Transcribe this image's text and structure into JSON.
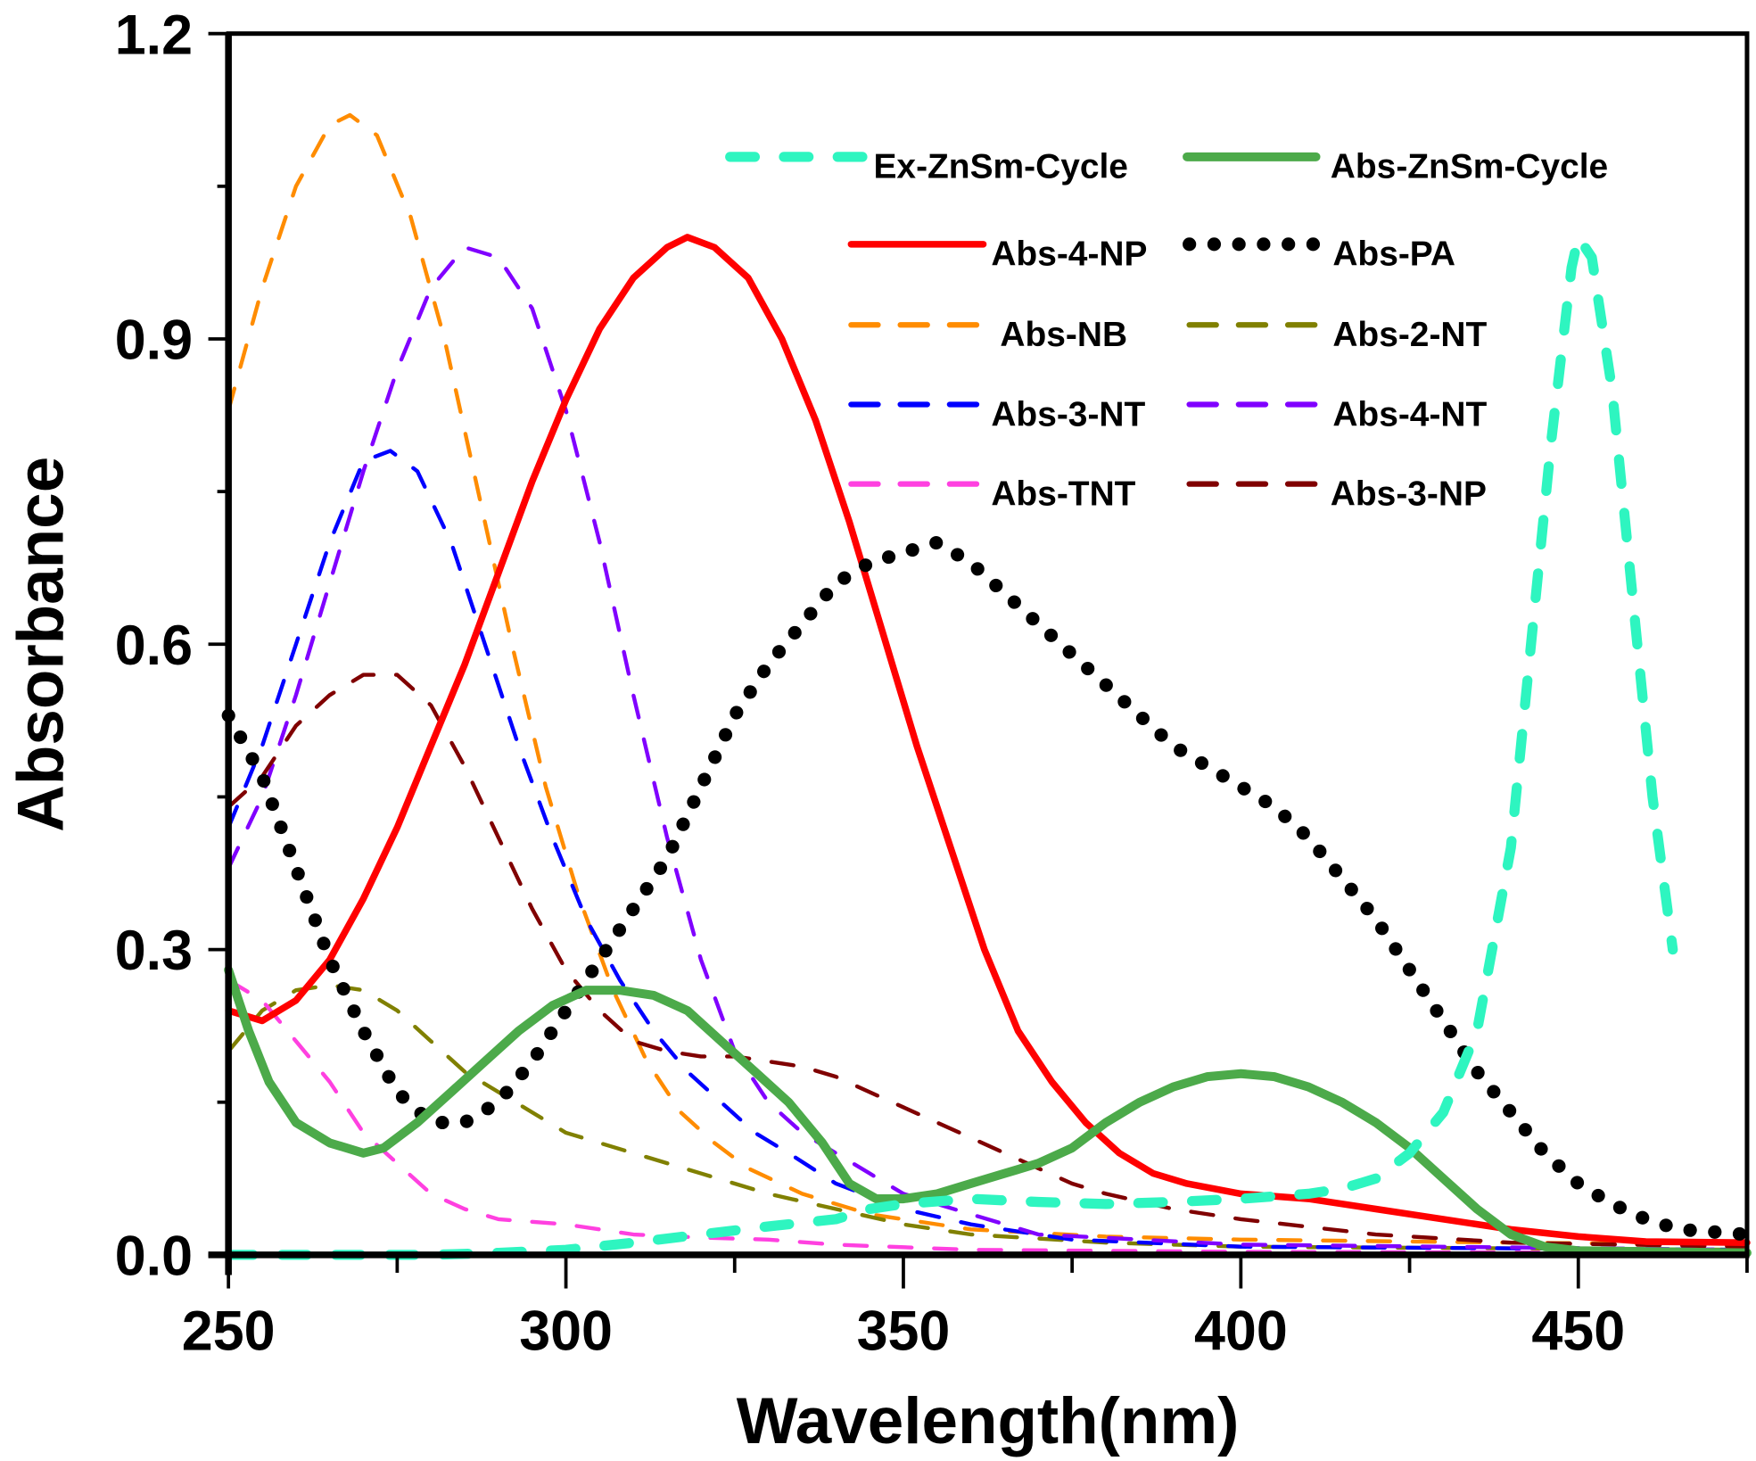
{
  "chart_data": {
    "type": "line",
    "xlabel": "Wavelength(nm)",
    "ylabel": "Absorbance",
    "xlim": [
      250,
      475
    ],
    "ylim": [
      0,
      1.2
    ],
    "xticks": [
      250,
      300,
      350,
      400,
      450
    ],
    "xtick_labels": [
      "250",
      "300",
      "350",
      "400",
      "450"
    ],
    "yticks": [
      0,
      0.3,
      0.6,
      0.9,
      1.2
    ],
    "ytick_labels": [
      "0.0",
      "0.3",
      "0.6",
      "0.9",
      "1.2"
    ],
    "grid": false,
    "legend_position": "top-right",
    "series": [
      {
        "name": "Ex-ZnSm-Cycle",
        "color": "#2ef5c0",
        "style": "dash-thick",
        "x": [
          250,
          280,
          290,
          300,
          310,
          320,
          330,
          340,
          345,
          350,
          360,
          370,
          380,
          390,
          400,
          410,
          415,
          420,
          425,
          430,
          435,
          440,
          443,
          446,
          449,
          450,
          452,
          455,
          458,
          461,
          464
        ],
        "y": [
          0,
          0,
          0.002,
          0.005,
          0.012,
          0.02,
          0.028,
          0.035,
          0.045,
          0.05,
          0.055,
          0.052,
          0.05,
          0.052,
          0.055,
          0.06,
          0.065,
          0.075,
          0.1,
          0.14,
          0.22,
          0.4,
          0.6,
          0.8,
          0.97,
          1.0,
          0.98,
          0.85,
          0.65,
          0.45,
          0.3
        ]
      },
      {
        "name": "Abs-ZnSm-Cycle",
        "color": "#4caa4a",
        "style": "solid-thick",
        "x": [
          250,
          253,
          256,
          260,
          265,
          270,
          273,
          278,
          283,
          288,
          293,
          298,
          303,
          308,
          313,
          318,
          323,
          328,
          333,
          338,
          342,
          346,
          350,
          355,
          360,
          365,
          370,
          375,
          380,
          385,
          390,
          395,
          400,
          405,
          410,
          415,
          420,
          425,
          430,
          435,
          440,
          445,
          450,
          475
        ],
        "y": [
          0.28,
          0.22,
          0.17,
          0.13,
          0.11,
          0.1,
          0.105,
          0.13,
          0.16,
          0.19,
          0.22,
          0.245,
          0.26,
          0.26,
          0.255,
          0.24,
          0.21,
          0.18,
          0.15,
          0.11,
          0.07,
          0.055,
          0.055,
          0.06,
          0.07,
          0.08,
          0.09,
          0.105,
          0.13,
          0.15,
          0.165,
          0.175,
          0.178,
          0.175,
          0.165,
          0.15,
          0.13,
          0.105,
          0.075,
          0.045,
          0.02,
          0.008,
          0.004,
          0.002
        ]
      },
      {
        "name": "Abs-4-NP",
        "color": "#ff0000",
        "style": "solid",
        "x": [
          250,
          255,
          260,
          265,
          270,
          275,
          280,
          285,
          290,
          295,
          300,
          305,
          310,
          315,
          318,
          322,
          327,
          332,
          337,
          342,
          347,
          352,
          357,
          362,
          367,
          372,
          377,
          382,
          387,
          392,
          400,
          410,
          420,
          430,
          440,
          450,
          460,
          475
        ],
        "y": [
          0.24,
          0.23,
          0.25,
          0.29,
          0.35,
          0.42,
          0.5,
          0.58,
          0.67,
          0.76,
          0.84,
          0.91,
          0.96,
          0.99,
          1.0,
          0.99,
          0.96,
          0.9,
          0.82,
          0.72,
          0.61,
          0.5,
          0.4,
          0.3,
          0.22,
          0.17,
          0.13,
          0.1,
          0.08,
          0.07,
          0.06,
          0.055,
          0.045,
          0.035,
          0.025,
          0.018,
          0.013,
          0.012
        ]
      },
      {
        "name": "Abs-PA",
        "color": "#000000",
        "style": "dot",
        "x": [
          250,
          255,
          260,
          265,
          270,
          275,
          280,
          285,
          290,
          295,
          300,
          305,
          310,
          315,
          320,
          325,
          330,
          335,
          340,
          345,
          350,
          355,
          360,
          365,
          370,
          375,
          380,
          385,
          390,
          395,
          400,
          405,
          410,
          415,
          420,
          425,
          430,
          435,
          440,
          445,
          450,
          455,
          460,
          465,
          475
        ],
        "y": [
          0.53,
          0.47,
          0.38,
          0.29,
          0.22,
          0.16,
          0.13,
          0.13,
          0.15,
          0.19,
          0.24,
          0.29,
          0.34,
          0.39,
          0.46,
          0.53,
          0.58,
          0.62,
          0.66,
          0.68,
          0.69,
          0.7,
          0.68,
          0.65,
          0.62,
          0.59,
          0.56,
          0.53,
          0.5,
          0.48,
          0.46,
          0.44,
          0.41,
          0.37,
          0.33,
          0.28,
          0.23,
          0.18,
          0.14,
          0.1,
          0.07,
          0.05,
          0.035,
          0.025,
          0.02
        ]
      },
      {
        "name": "Abs-NB",
        "color": "#ff8c00",
        "style": "dash",
        "x": [
          250,
          255,
          260,
          265,
          268,
          272,
          277,
          282,
          287,
          292,
          297,
          302,
          307,
          312,
          317,
          322,
          327,
          335,
          345,
          360,
          380,
          400,
          440,
          475
        ],
        "y": [
          0.83,
          0.95,
          1.05,
          1.11,
          1.12,
          1.1,
          1.02,
          0.9,
          0.75,
          0.6,
          0.46,
          0.35,
          0.26,
          0.19,
          0.14,
          0.11,
          0.085,
          0.06,
          0.04,
          0.025,
          0.018,
          0.015,
          0.012,
          0.01
        ]
      },
      {
        "name": "Abs-2-NT",
        "color": "#808000",
        "style": "dash",
        "x": [
          250,
          255,
          260,
          265,
          270,
          275,
          280,
          285,
          290,
          295,
          300,
          310,
          320,
          330,
          340,
          350,
          360,
          380,
          400,
          475
        ],
        "y": [
          0.2,
          0.24,
          0.26,
          0.265,
          0.26,
          0.24,
          0.21,
          0.18,
          0.16,
          0.14,
          0.12,
          0.1,
          0.08,
          0.06,
          0.045,
          0.03,
          0.02,
          0.012,
          0.008,
          0.005
        ]
      },
      {
        "name": "Abs-3-NT",
        "color": "#0000ff",
        "style": "dash",
        "x": [
          250,
          255,
          260,
          265,
          270,
          274,
          278,
          283,
          288,
          293,
          298,
          303,
          308,
          313,
          318,
          323,
          328,
          333,
          340,
          350,
          360,
          375,
          400,
          475
        ],
        "y": [
          0.42,
          0.5,
          0.6,
          0.7,
          0.78,
          0.79,
          0.77,
          0.7,
          0.6,
          0.5,
          0.41,
          0.33,
          0.27,
          0.22,
          0.18,
          0.15,
          0.12,
          0.1,
          0.07,
          0.045,
          0.03,
          0.015,
          0.008,
          0.005
        ]
      },
      {
        "name": "Abs-4-NT",
        "color": "#8000ff",
        "style": "dash",
        "x": [
          250,
          255,
          260,
          265,
          270,
          275,
          280,
          285,
          290,
          295,
          300,
          305,
          310,
          315,
          320,
          325,
          330,
          335,
          340,
          345,
          350,
          360,
          370,
          400,
          475
        ],
        "y": [
          0.38,
          0.45,
          0.55,
          0.66,
          0.77,
          0.87,
          0.95,
          0.99,
          0.98,
          0.93,
          0.83,
          0.7,
          0.55,
          0.41,
          0.29,
          0.2,
          0.15,
          0.12,
          0.1,
          0.08,
          0.06,
          0.04,
          0.02,
          0.01,
          0.005
        ]
      },
      {
        "name": "Abs-TNT",
        "color": "#ff40e0",
        "style": "dash",
        "x": [
          250,
          255,
          260,
          265,
          270,
          275,
          280,
          285,
          290,
          300,
          310,
          320,
          330,
          340,
          360,
          400,
          475
        ],
        "y": [
          0.27,
          0.25,
          0.21,
          0.17,
          0.12,
          0.09,
          0.06,
          0.045,
          0.035,
          0.03,
          0.02,
          0.017,
          0.015,
          0.01,
          0.005,
          0.003,
          0.002
        ]
      },
      {
        "name": "Abs-3-NP",
        "color": "#800000",
        "style": "dash",
        "x": [
          250,
          255,
          260,
          265,
          270,
          275,
          280,
          285,
          290,
          295,
          300,
          305,
          310,
          315,
          320,
          325,
          330,
          335,
          340,
          345,
          350,
          355,
          360,
          365,
          370,
          375,
          380,
          390,
          400,
          420,
          440,
          475
        ],
        "y": [
          0.44,
          0.47,
          0.52,
          0.55,
          0.57,
          0.57,
          0.54,
          0.48,
          0.41,
          0.34,
          0.28,
          0.24,
          0.21,
          0.2,
          0.195,
          0.195,
          0.19,
          0.185,
          0.175,
          0.16,
          0.145,
          0.13,
          0.115,
          0.1,
          0.085,
          0.07,
          0.06,
          0.045,
          0.035,
          0.02,
          0.012,
          0.008
        ]
      }
    ]
  }
}
